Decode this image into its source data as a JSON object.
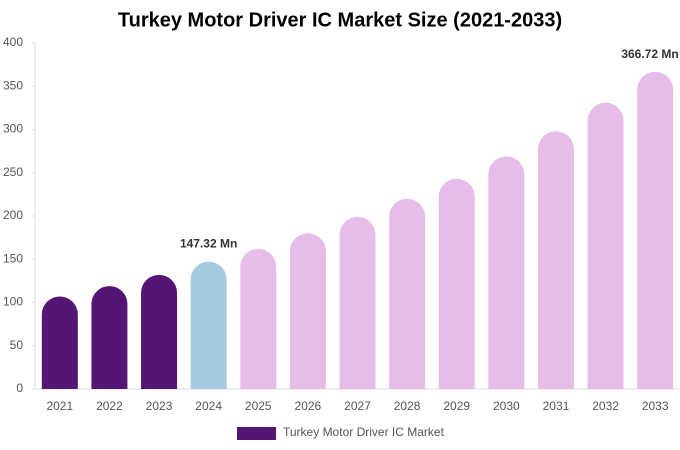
{
  "chart_data": {
    "type": "bar",
    "title": "Turkey Motor Driver IC Market Size (2021-2033)",
    "categories": [
      "2021",
      "2022",
      "2023",
      "2024",
      "2025",
      "2026",
      "2027",
      "2028",
      "2029",
      "2030",
      "2031",
      "2032",
      "2033"
    ],
    "series": [
      {
        "name": "Turkey Motor Driver IC Market",
        "color": "#541574",
        "values": [
          107,
          119,
          132,
          147.32,
          162,
          180,
          199,
          220,
          243,
          269,
          298,
          331,
          366.72
        ],
        "value_labels": [
          null,
          null,
          null,
          "147.32 Mn",
          null,
          null,
          null,
          null,
          null,
          null,
          null,
          null,
          "366.72 Mn"
        ],
        "colors": [
          "#541574",
          "#541574",
          "#541574",
          "#a5cbe0",
          "#e6bde8",
          "#e6bde8",
          "#e6bde8",
          "#e6bde8",
          "#e6bde8",
          "#e6bde8",
          "#e6bde8",
          "#e6bde8",
          "#e6bde8"
        ]
      }
    ],
    "ylim": [
      0,
      400
    ],
    "yticks": [
      0,
      50,
      100,
      150,
      200,
      250,
      300,
      350,
      400
    ],
    "grid": false
  }
}
